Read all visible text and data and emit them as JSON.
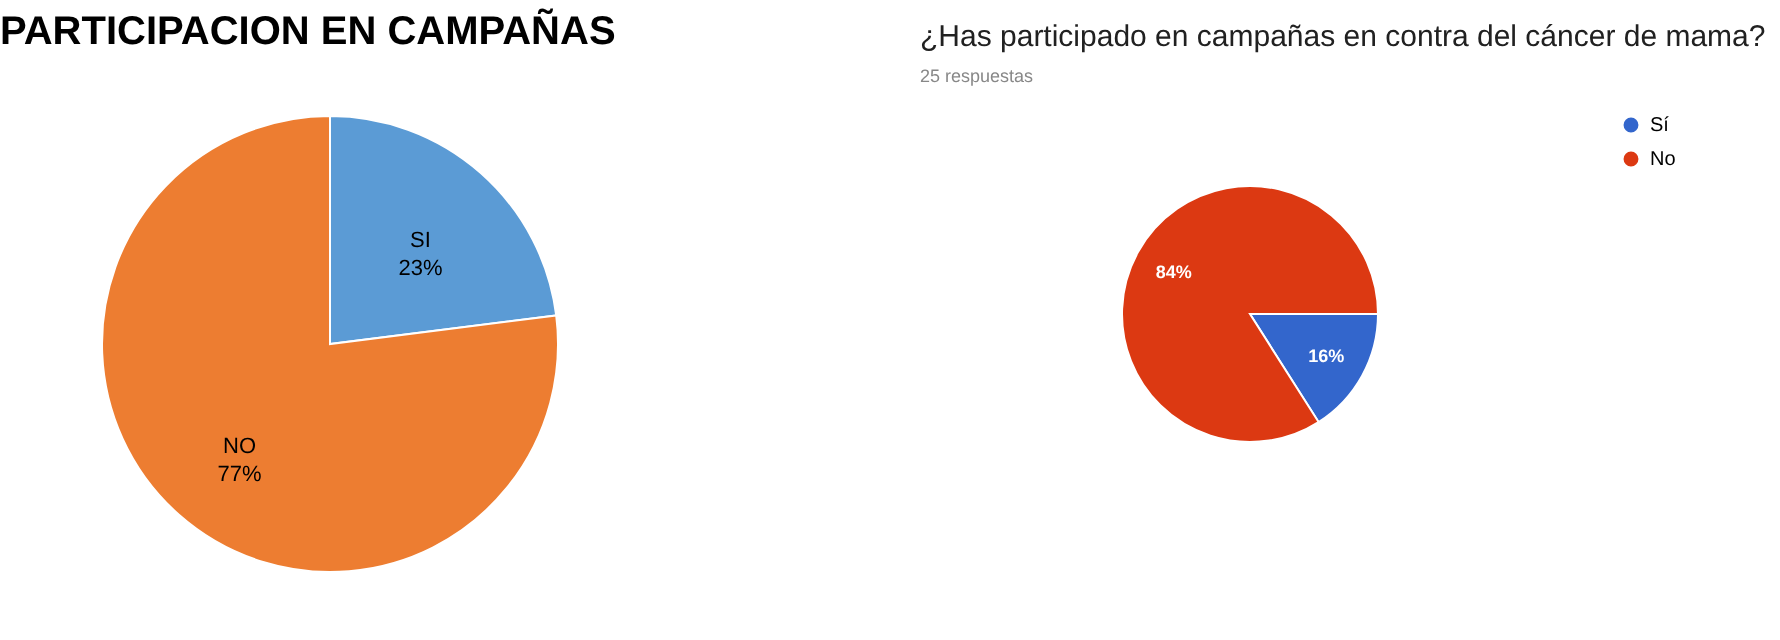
{
  "chart_data": [
    {
      "type": "pie",
      "title": "PARTICIPACION EN CAMPAÑAS",
      "categories": [
        "SI",
        "NO"
      ],
      "values": [
        23,
        77
      ],
      "colors": [
        "#5b9bd5",
        "#ed7d31"
      ],
      "value_labels": [
        "23%",
        "77%"
      ]
    },
    {
      "type": "pie",
      "title": "¿Has participado en campañas en contra del cáncer de mama?",
      "subtitle": "25 respuestas",
      "categories": [
        "Sí",
        "No"
      ],
      "values": [
        16,
        84
      ],
      "colors": [
        "#3366cc",
        "#dc3912"
      ],
      "value_labels": [
        "16%",
        "84%"
      ],
      "legend": "top right"
    }
  ]
}
